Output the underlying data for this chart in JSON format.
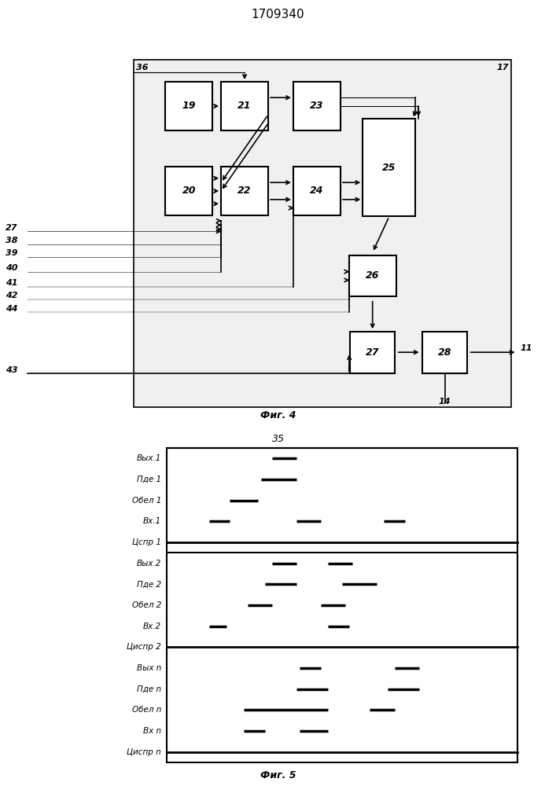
{
  "title": "1709340",
  "fig4_label": "Фиг. 4",
  "fig5_label": "Фиг. 5",
  "fig5_num": "35",
  "signals_group1": {
    "labels": [
      "Вых.1",
      "Пде 1",
      "Обел 1",
      "Вх.1",
      "Цспр 1"
    ],
    "pulses": [
      [
        [
          0.3,
          0.37
        ]
      ],
      [
        [
          0.27,
          0.37
        ]
      ],
      [
        [
          0.18,
          0.26
        ]
      ],
      [
        [
          0.12,
          0.18
        ],
        [
          0.37,
          0.44
        ],
        [
          0.62,
          0.68
        ]
      ],
      []
    ],
    "is_line": [
      false,
      false,
      false,
      false,
      true
    ]
  },
  "signals_group2": {
    "labels": [
      "Вых.2",
      "Пде 2",
      "Обел 2",
      "Вх.2",
      "Циспр 2"
    ],
    "pulses": [
      [
        [
          0.3,
          0.37
        ],
        [
          0.46,
          0.53
        ]
      ],
      [
        [
          0.28,
          0.37
        ],
        [
          0.5,
          0.6
        ]
      ],
      [
        [
          0.23,
          0.3
        ],
        [
          0.44,
          0.51
        ]
      ],
      [
        [
          0.12,
          0.17
        ],
        [
          0.46,
          0.52
        ]
      ],
      []
    ],
    "is_line": [
      false,
      false,
      false,
      false,
      true
    ]
  },
  "signals_group3": {
    "labels": [
      "Вых n",
      "Пде n",
      "Обел n",
      "Вх n",
      "Циспр n"
    ],
    "pulses": [
      [
        [
          0.38,
          0.44
        ],
        [
          0.65,
          0.72
        ]
      ],
      [
        [
          0.37,
          0.46
        ],
        [
          0.63,
          0.72
        ]
      ],
      [
        [
          0.22,
          0.46
        ],
        [
          0.58,
          0.65
        ]
      ],
      [
        [
          0.22,
          0.28
        ],
        [
          0.38,
          0.46
        ]
      ],
      []
    ],
    "is_line": [
      false,
      false,
      false,
      false,
      true
    ]
  }
}
